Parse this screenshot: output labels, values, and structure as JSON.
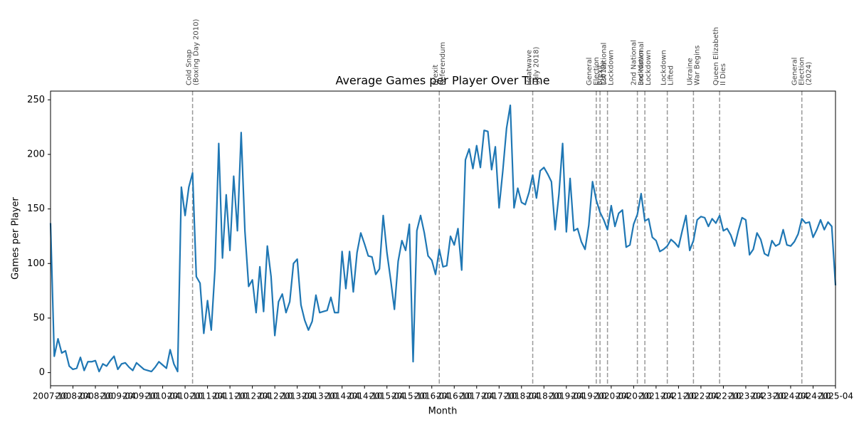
{
  "chart_data": {
    "type": "line",
    "title": "Average Games per Player Over Time",
    "x_label": "Month",
    "y_label": "Games per Player",
    "categories": [
      "2007-10",
      "2007-11",
      "2007-12",
      "2008-01",
      "2008-02",
      "2008-03",
      "2008-04",
      "2008-05",
      "2008-06",
      "2008-07",
      "2008-08",
      "2008-09",
      "2008-10",
      "2008-11",
      "2008-12",
      "2009-01",
      "2009-02",
      "2009-03",
      "2009-04",
      "2009-05",
      "2009-06",
      "2009-07",
      "2009-08",
      "2009-09",
      "2009-10",
      "2009-11",
      "2009-12",
      "2010-01",
      "2010-02",
      "2010-03",
      "2010-04",
      "2010-05",
      "2010-06",
      "2010-07",
      "2010-08",
      "2010-09",
      "2010-10",
      "2010-11",
      "2010-12",
      "2011-01",
      "2011-02",
      "2011-03",
      "2011-04",
      "2011-05",
      "2011-06",
      "2011-07",
      "2011-08",
      "2011-09",
      "2011-10",
      "2011-11",
      "2011-12",
      "2012-01",
      "2012-02",
      "2012-03",
      "2012-04",
      "2012-05",
      "2012-06",
      "2012-07",
      "2012-08",
      "2012-09",
      "2012-10",
      "2012-11",
      "2012-12",
      "2013-01",
      "2013-02",
      "2013-03",
      "2013-04",
      "2013-05",
      "2013-06",
      "2013-07",
      "2013-08",
      "2013-09",
      "2013-10",
      "2013-11",
      "2013-12",
      "2014-01",
      "2014-02",
      "2014-03",
      "2014-04",
      "2014-05",
      "2014-06",
      "2014-07",
      "2014-08",
      "2014-09",
      "2014-10",
      "2014-11",
      "2014-12",
      "2015-01",
      "2015-02",
      "2015-03",
      "2015-04",
      "2015-05",
      "2015-06",
      "2015-07",
      "2015-08",
      "2015-09",
      "2015-10",
      "2015-11",
      "2015-12",
      "2016-01",
      "2016-02",
      "2016-03",
      "2016-04",
      "2016-05",
      "2016-06",
      "2016-07",
      "2016-08",
      "2016-09",
      "2016-10",
      "2016-11",
      "2016-12",
      "2017-01",
      "2017-02",
      "2017-03",
      "2017-04",
      "2017-05",
      "2017-06",
      "2017-07",
      "2017-08",
      "2017-09",
      "2017-10",
      "2017-11",
      "2017-12",
      "2018-01",
      "2018-02",
      "2018-03",
      "2018-04",
      "2018-05",
      "2018-06",
      "2018-07",
      "2018-08",
      "2018-09",
      "2018-10",
      "2018-11",
      "2018-12",
      "2019-01",
      "2019-02",
      "2019-03",
      "2019-04",
      "2019-05",
      "2019-06",
      "2019-07",
      "2019-08",
      "2019-09",
      "2019-10",
      "2019-11",
      "2019-12",
      "2020-01",
      "2020-02",
      "2020-03",
      "2020-04",
      "2020-05",
      "2020-06",
      "2020-07",
      "2020-08",
      "2020-09",
      "2020-10",
      "2020-11",
      "2020-12",
      "2021-01",
      "2021-02",
      "2021-03",
      "2021-04",
      "2021-05",
      "2021-06",
      "2021-07",
      "2021-08",
      "2021-09",
      "2021-10",
      "2021-11",
      "2021-12",
      "2022-01",
      "2022-02",
      "2022-03",
      "2022-04",
      "2022-05",
      "2022-06",
      "2022-07",
      "2022-08",
      "2022-09",
      "2022-10",
      "2022-11",
      "2022-12",
      "2023-01",
      "2023-02",
      "2023-03",
      "2023-04",
      "2023-05",
      "2023-06",
      "2023-07",
      "2023-08",
      "2023-09",
      "2023-10",
      "2023-11",
      "2023-12",
      "2024-01",
      "2024-02",
      "2024-03",
      "2024-04",
      "2024-05",
      "2024-06",
      "2024-07",
      "2024-08",
      "2024-09",
      "2024-10",
      "2024-11",
      "2024-12",
      "2025-01",
      "2025-02",
      "2025-03",
      "2025-04"
    ],
    "series": [
      {
        "name": "Games per Player",
        "color": "#1f77b4",
        "values": [
          137,
          15,
          31,
          18,
          20,
          6,
          3,
          4,
          14,
          2,
          10,
          10,
          11,
          1,
          8,
          6,
          11,
          15,
          3,
          8,
          9,
          5,
          2,
          9,
          6,
          3,
          2,
          1,
          5,
          10,
          7,
          4,
          21,
          8,
          1,
          170,
          144,
          170,
          183,
          88,
          82,
          36,
          66,
          39,
          95,
          210,
          105,
          163,
          112,
          180,
          130,
          220,
          130,
          79,
          85,
          55,
          97,
          56,
          116,
          88,
          34,
          65,
          72,
          55,
          65,
          100,
          104,
          62,
          48,
          39,
          47,
          71,
          55,
          56,
          57,
          69,
          55,
          55,
          111,
          77,
          111,
          74,
          110,
          128,
          118,
          107,
          106,
          90,
          95,
          144,
          110,
          85,
          58,
          102,
          121,
          112,
          136,
          10,
          130,
          144,
          128,
          107,
          103,
          90,
          113,
          97,
          98,
          125,
          117,
          132,
          94,
          195,
          205,
          187,
          208,
          188,
          222,
          221,
          186,
          207,
          151,
          185,
          224,
          245,
          151,
          169,
          156,
          154,
          165,
          181,
          160,
          185,
          188,
          182,
          175,
          131,
          163,
          210,
          129,
          178,
          130,
          132,
          120,
          113,
          135,
          175,
          158,
          147,
          140,
          131,
          153,
          134,
          146,
          149,
          115,
          117,
          136,
          145,
          164,
          139,
          141,
          124,
          121,
          111,
          113,
          116,
          122,
          119,
          115,
          130,
          144,
          112,
          121,
          140,
          143,
          142,
          134,
          141,
          137,
          144,
          130,
          132,
          126,
          116,
          130,
          142,
          140,
          108,
          113,
          128,
          122,
          109,
          107,
          121,
          116,
          118,
          131,
          117,
          116,
          120,
          127,
          141,
          137,
          138,
          124,
          131,
          140,
          131,
          138,
          134,
          80
        ]
      }
    ],
    "ylim": [
      -12,
      258
    ],
    "yticks": [
      0,
      50,
      100,
      150,
      200,
      250
    ],
    "xticks": [
      "2007-10",
      "2008-04",
      "2008-10",
      "2009-04",
      "2009-10",
      "2010-04",
      "2010-10",
      "2011-04",
      "2011-10",
      "2012-04",
      "2012-10",
      "2013-04",
      "2013-10",
      "2014-04",
      "2014-10",
      "2015-04",
      "2015-10",
      "2016-04",
      "2016-10",
      "2017-04",
      "2017-10",
      "2018-04",
      "2018-10",
      "2019-04",
      "2019-10",
      "2020-04",
      "2020-10",
      "2021-04",
      "2021-10",
      "2022-04",
      "2022-10",
      "2023-04",
      "2023-10",
      "2024-04",
      "2024-10",
      "2025-04"
    ],
    "events": [
      {
        "x": "2010-12",
        "label": [
          "Cold Snap",
          "(Boxing Day 2010)"
        ]
      },
      {
        "x": "2016-06",
        "label": [
          "Brexit",
          "Referendum"
        ]
      },
      {
        "x": "2018-07",
        "label": [
          "Heatwave",
          "(July 2018)"
        ]
      },
      {
        "x": "2019-12",
        "label": [
          "General",
          "Election",
          "(2019)"
        ]
      },
      {
        "x": "2020-01",
        "label": [
          "Brexit"
        ]
      },
      {
        "x": "2020-03",
        "label": [
          "1st National",
          "Lockdown"
        ]
      },
      {
        "x": "2020-11",
        "label": [
          "2nd National",
          "Lockdown"
        ]
      },
      {
        "x": "2021-01",
        "label": [
          "3rd National",
          "Lockdown"
        ]
      },
      {
        "x": "2021-07",
        "label": [
          "Lockdown",
          "Lifted"
        ]
      },
      {
        "x": "2022-02",
        "label": [
          "Ukraine",
          "War Begins"
        ]
      },
      {
        "x": "2022-09",
        "label": [
          "Queen Elizabeth",
          "II Dies"
        ]
      },
      {
        "x": "2024-07",
        "label": [
          "General",
          "Election",
          "(2024)"
        ]
      }
    ],
    "event_color": "#999999",
    "grid": false
  }
}
